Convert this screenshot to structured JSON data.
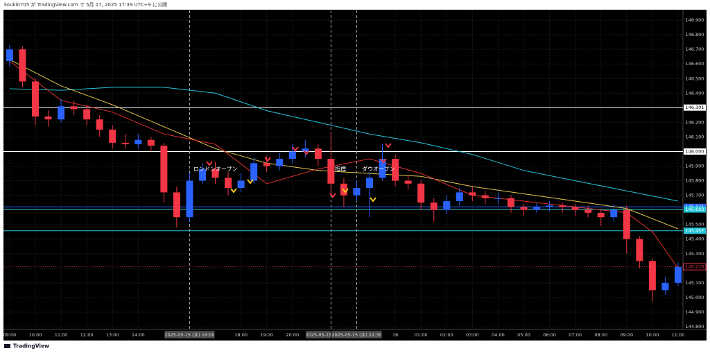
{
  "header": "kouki0705 が TradingView.com で 5月 17, 2025 17:39 UTC+9 に公開",
  "footer": "TradingView",
  "chart_data": {
    "type": "candlestick",
    "up_color": "#2962ff",
    "down_color": "#f23645",
    "x": [
      0,
      0.5,
      1,
      1.5,
      2,
      2.5,
      3,
      3.5,
      4,
      4.5,
      5,
      5.5,
      6,
      6.5,
      7,
      7.5,
      8,
      8.5,
      9,
      9.5,
      10,
      10.5,
      11,
      11.5,
      12,
      12.5,
      13,
      13.5,
      14,
      14.5,
      15,
      15.5,
      16,
      16.5,
      17,
      17.5,
      18,
      18.5,
      19,
      19.5,
      20,
      20.5,
      21,
      21.5,
      22,
      22.5,
      23,
      23.5,
      24,
      24.5,
      25,
      25.5,
      26
    ],
    "open": [
      146.62,
      146.7,
      146.48,
      146.24,
      146.22,
      146.31,
      146.29,
      146.22,
      146.15,
      146.06,
      146.05,
      146.08,
      146.04,
      145.72,
      145.55,
      145.8,
      145.88,
      145.82,
      145.75,
      145.8,
      145.92,
      145.9,
      145.95,
      146.0,
      146.02,
      145.95,
      145.78,
      145.7,
      145.75,
      145.82,
      145.95,
      145.8,
      145.78,
      145.65,
      145.6,
      145.66,
      145.72,
      145.7,
      145.68,
      145.68,
      145.62,
      145.6,
      145.62,
      145.63,
      145.62,
      145.6,
      145.58,
      145.55,
      145.6,
      145.4,
      145.25,
      145.05,
      145.1
    ],
    "high": [
      146.73,
      146.72,
      146.5,
      146.28,
      146.36,
      146.35,
      146.32,
      146.25,
      146.18,
      146.12,
      146.12,
      146.1,
      146.06,
      145.76,
      145.85,
      145.92,
      145.93,
      145.86,
      145.85,
      145.96,
      145.97,
      145.99,
      146.05,
      146.08,
      146.05,
      146.13,
      145.82,
      145.8,
      145.86,
      146.05,
      145.98,
      145.84,
      145.8,
      145.68,
      145.7,
      145.75,
      145.76,
      145.73,
      145.72,
      145.7,
      145.64,
      145.65,
      145.66,
      145.65,
      145.64,
      145.63,
      145.6,
      145.64,
      145.63,
      145.42,
      145.27,
      145.14,
      145.24
    ],
    "low": [
      146.58,
      146.44,
      146.18,
      146.17,
      146.2,
      146.25,
      146.18,
      146.1,
      146.02,
      146.02,
      146.02,
      146.0,
      145.65,
      145.48,
      145.52,
      145.78,
      145.78,
      145.7,
      145.72,
      145.78,
      145.86,
      145.87,
      145.92,
      145.96,
      145.9,
      145.7,
      145.62,
      145.66,
      145.55,
      145.8,
      145.76,
      145.74,
      145.6,
      145.52,
      145.57,
      145.63,
      145.66,
      145.64,
      145.64,
      145.58,
      145.56,
      145.58,
      145.59,
      145.58,
      145.56,
      145.55,
      145.49,
      145.52,
      145.3,
      145.2,
      144.97,
      145.02,
      145.08
    ],
    "close": [
      146.7,
      146.48,
      146.24,
      146.22,
      146.31,
      146.29,
      146.22,
      146.15,
      146.06,
      146.05,
      146.08,
      146.04,
      145.72,
      145.55,
      145.8,
      145.88,
      145.82,
      145.75,
      145.8,
      145.92,
      145.9,
      145.95,
      146.0,
      146.02,
      145.95,
      145.78,
      145.7,
      145.75,
      145.82,
      145.95,
      145.8,
      145.78,
      145.65,
      145.6,
      145.66,
      145.72,
      145.7,
      145.68,
      145.68,
      145.62,
      145.6,
      145.62,
      145.63,
      145.62,
      145.6,
      145.58,
      145.55,
      145.6,
      145.4,
      145.25,
      145.05,
      145.1,
      145.21
    ],
    "series": [
      {
        "color": "#26c6da",
        "x": [
          0,
          2,
          4,
          6,
          8,
          10,
          12,
          14,
          16,
          18,
          20,
          22,
          24,
          26
        ],
        "values": [
          146.43,
          146.42,
          146.44,
          146.44,
          146.4,
          146.28,
          146.2,
          146.12,
          146.06,
          145.98,
          145.87,
          145.8,
          145.73,
          145.66
        ]
      },
      {
        "color": "#e6c84a",
        "x": [
          0,
          2,
          4,
          6,
          8,
          10,
          12,
          14,
          16,
          18,
          20,
          22,
          24,
          25,
          26
        ],
        "values": [
          146.63,
          146.45,
          146.32,
          146.17,
          146.02,
          145.92,
          145.87,
          145.85,
          145.83,
          145.76,
          145.71,
          145.66,
          145.61,
          145.54,
          145.47
        ]
      },
      {
        "color": "#e0312f",
        "x": [
          0,
          2,
          4,
          6,
          8,
          10,
          12,
          14,
          16,
          18,
          20,
          22,
          24,
          25,
          26
        ],
        "values": [
          146.62,
          146.35,
          146.27,
          146.12,
          146.05,
          145.78,
          145.88,
          145.95,
          145.85,
          145.7,
          145.66,
          145.62,
          145.58,
          145.45,
          145.2
        ]
      }
    ],
    "hlines": [
      {
        "value": 146.301,
        "label": "146.301",
        "color": "#ffffff"
      },
      {
        "value": 146.0,
        "label": "146.000",
        "color": "#ffffff"
      },
      {
        "value": 145.621,
        "label": "145.621",
        "color": "#2962ff"
      },
      {
        "value": 145.603,
        "label": "145.603",
        "color": "#26c6da"
      },
      {
        "value": 145.457,
        "label": "145.457",
        "color": "#26c6da"
      }
    ],
    "last_price": {
      "value": 145.21,
      "label": "145.210",
      "color": "#f23645"
    },
    "vlines": [
      {
        "x": 7,
        "label": "2025-05-15 (木) 16:00"
      },
      {
        "x": 12.5,
        "label": "2025-05-15"
      },
      {
        "x": 13.5,
        "label": "2025-05-15 (木) 22:30"
      }
    ],
    "annotations": [
      "ロンドンオープン",
      "指標",
      "ダウオープン"
    ],
    "ylim": [
      144.781,
      146.967
    ],
    "yticks": [
      {
        "value": 144.8,
        "label": "144.800"
      },
      {
        "value": 144.9,
        "label": "144.900"
      },
      {
        "value": 145.0,
        "label": "145.000"
      },
      {
        "value": 145.1,
        "label": "145.100"
      },
      {
        "value": 145.2,
        "label": "145.200"
      },
      {
        "value": 145.3,
        "label": "145.300"
      },
      {
        "value": 145.4,
        "label": "145.400"
      },
      {
        "value": 145.5,
        "label": "145.500"
      },
      {
        "value": 145.6,
        "label": "145.600"
      },
      {
        "value": 145.7,
        "label": "145.700"
      },
      {
        "value": 145.8,
        "label": "145.800"
      },
      {
        "value": 145.9,
        "label": "145.900"
      },
      {
        "value": 146.0,
        "label": "146.000"
      },
      {
        "value": 146.1,
        "label": "146.100"
      },
      {
        "value": 146.2,
        "label": "146.200"
      },
      {
        "value": 146.3,
        "label": "146.300"
      },
      {
        "value": 146.4,
        "label": "146.400"
      },
      {
        "value": 146.5,
        "label": "146.500"
      },
      {
        "value": 146.6,
        "label": "146.600"
      },
      {
        "value": 146.7,
        "label": "146.700"
      },
      {
        "value": 146.8,
        "label": "146.800"
      },
      {
        "value": 146.9,
        "label": "146.900"
      }
    ],
    "xlim": [
      -0.24,
      26.19
    ],
    "xticks": [
      {
        "value": 0,
        "label": "09:00"
      },
      {
        "value": 1,
        "label": "10:00"
      },
      {
        "value": 2,
        "label": "11:00"
      },
      {
        "value": 3,
        "label": "12:00"
      },
      {
        "value": 4,
        "label": "13:00"
      },
      {
        "value": 5,
        "label": "14:00"
      },
      {
        "value": 9,
        "label": "18:00"
      },
      {
        "value": 10,
        "label": "19:00"
      },
      {
        "value": 11,
        "label": "20:00"
      },
      {
        "value": 15,
        "label": "16"
      },
      {
        "value": 16,
        "label": "01:00"
      },
      {
        "value": 17,
        "label": "02:00"
      },
      {
        "value": 18,
        "label": "03:00"
      },
      {
        "value": 19,
        "label": "04:00"
      },
      {
        "value": 20,
        "label": "05:00"
      },
      {
        "value": 21,
        "label": "06:00"
      },
      {
        "value": 22,
        "label": "07:00"
      },
      {
        "value": 23,
        "label": "08:00"
      },
      {
        "value": 24,
        "label": "09:00"
      },
      {
        "value": 25,
        "label": "10:00"
      },
      {
        "value": 26,
        "label": "11:00"
      }
    ],
    "grid": true
  }
}
